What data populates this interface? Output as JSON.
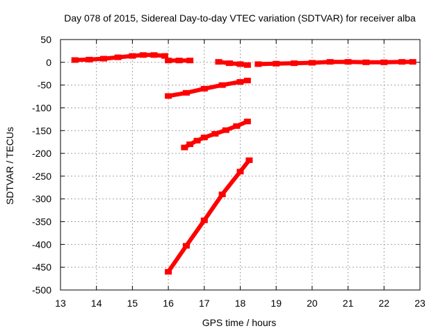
{
  "chart_data": {
    "type": "scatter",
    "title": "Day 078 of 2015, Sidereal Day-to-day VTEC variation (SDTVAR) for receiver alba",
    "xlabel": "GPS time / hours",
    "ylabel": "SDTVAR / TECUs",
    "xlim": [
      13,
      23
    ],
    "ylim": [
      -500,
      50
    ],
    "xticks": [
      13,
      14,
      15,
      16,
      17,
      18,
      19,
      20,
      21,
      22,
      23
    ],
    "yticks": [
      -500,
      -450,
      -400,
      -350,
      -300,
      -250,
      -200,
      -150,
      -100,
      -50,
      0,
      50
    ],
    "grid": true,
    "series_color": "#ff0000",
    "series": [
      {
        "x": [
          13.4,
          13.8,
          14.2,
          14.6,
          15.0,
          15.3,
          15.6,
          15.9
        ],
        "y": [
          5,
          6,
          8,
          11,
          14,
          16,
          16,
          14
        ]
      },
      {
        "x": [
          16.0,
          16.3,
          16.6
        ],
        "y": [
          4,
          4,
          4
        ]
      },
      {
        "x": [
          17.4,
          17.7,
          18.0,
          18.2
        ],
        "y": [
          1,
          -2,
          -4,
          -6
        ]
      },
      {
        "x": [
          18.5,
          19.0,
          19.5,
          20.0,
          20.5,
          21.0,
          21.5,
          22.0,
          22.5,
          22.8
        ],
        "y": [
          -4,
          -3,
          -2,
          -1,
          1,
          1,
          0,
          0,
          1,
          1
        ]
      },
      {
        "x": [
          16.0,
          16.5,
          17.0,
          17.5,
          18.0,
          18.2
        ],
        "y": [
          -74,
          -67,
          -58,
          -50,
          -43,
          -40
        ]
      },
      {
        "x": [
          16.45,
          16.6,
          16.8,
          17.0,
          17.3,
          17.6,
          17.9,
          18.2
        ],
        "y": [
          -187,
          -180,
          -172,
          -165,
          -157,
          -149,
          -140,
          -130
        ]
      },
      {
        "x": [
          16.0,
          16.5,
          17.0,
          17.5,
          18.0,
          18.25
        ],
        "y": [
          -460,
          -403,
          -347,
          -290,
          -240,
          -215
        ]
      }
    ]
  }
}
